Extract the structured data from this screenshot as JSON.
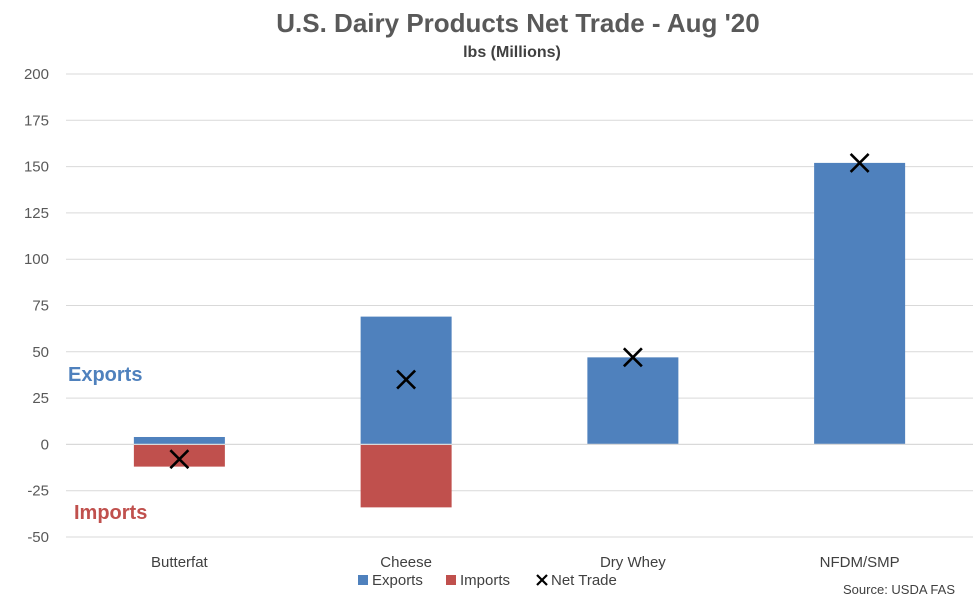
{
  "chart_data": {
    "type": "bar",
    "title": "U.S. Dairy Products Net Trade - Aug '20",
    "subtitle": "lbs (Millions)",
    "categories": [
      "Butterfat",
      "Cheese",
      "Dry Whey",
      "NFDM/SMP"
    ],
    "series": [
      {
        "name": "Exports",
        "values": [
          4,
          69,
          47,
          152
        ],
        "color": "#4f81bd"
      },
      {
        "name": "Imports",
        "values": [
          -12,
          -34,
          0,
          0
        ],
        "color": "#c0504d"
      }
    ],
    "net_trade": {
      "name": "Net Trade",
      "values": [
        -8,
        35,
        47,
        152
      ],
      "marker": "x",
      "color": "#000000"
    },
    "ylim": [
      -50,
      200
    ],
    "yticks": [
      200,
      175,
      150,
      125,
      100,
      75,
      50,
      25,
      0,
      -25,
      -50
    ],
    "stacked": true,
    "grid": true,
    "legend": "bottom-center",
    "annotations": [
      {
        "text": "Exports",
        "color": "#4f81bd"
      },
      {
        "text": "Imports",
        "color": "#c0504d"
      }
    ],
    "source": "Source: USDA FAS"
  }
}
